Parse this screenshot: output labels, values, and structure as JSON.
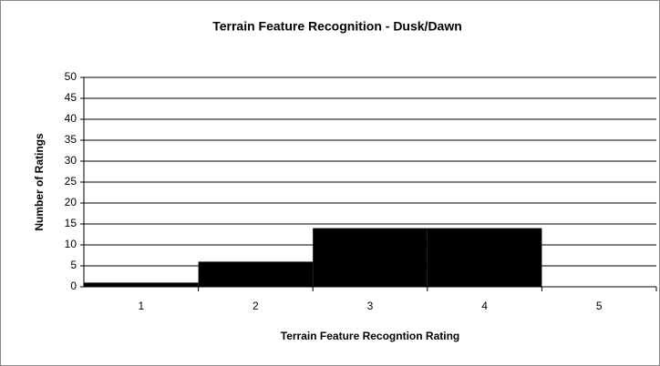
{
  "chart_data": {
    "type": "bar",
    "title": "Terrain Feature Recognition - Dusk/Dawn",
    "x_label": "Terrain Feature Recogntion Rating",
    "y_label": "Number of Ratings",
    "categories": [
      "1",
      "2",
      "3",
      "4",
      "5"
    ],
    "values": [
      1,
      6,
      14,
      14,
      0
    ],
    "color": "#000000",
    "ylim": [
      0,
      50
    ],
    "yticks": [
      0,
      5,
      10,
      15,
      20,
      25,
      30,
      35,
      40,
      45,
      50
    ],
    "grid": true
  }
}
